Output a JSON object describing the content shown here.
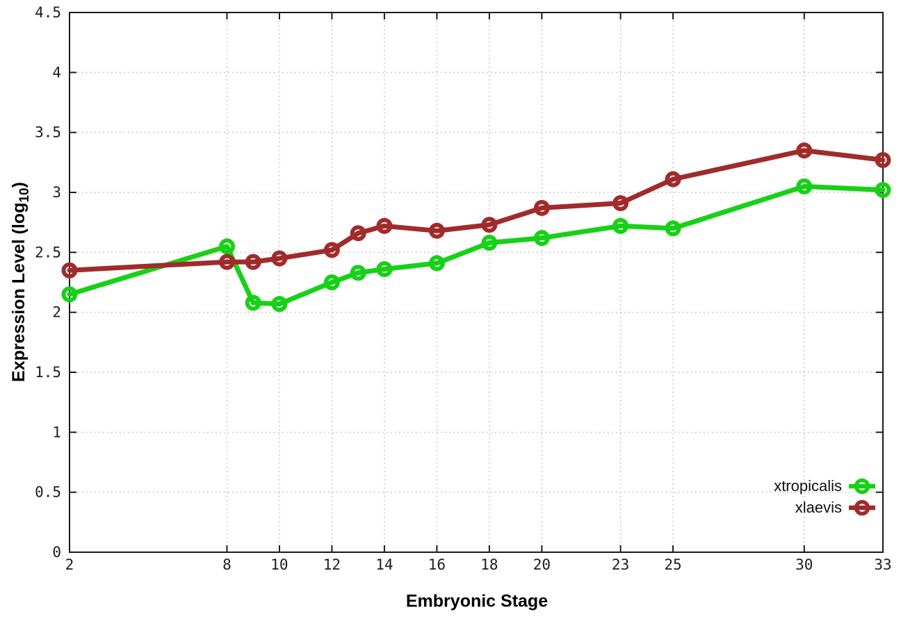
{
  "chart_data": {
    "type": "line",
    "title": "",
    "xlabel": "Embryonic Stage",
    "ylabel_main": "Expression Level (log",
    "ylabel_sub": "10",
    "ylabel_end": ")",
    "x": [
      2,
      8,
      9,
      10,
      12,
      13,
      14,
      16,
      18,
      20,
      23,
      25,
      30,
      33
    ],
    "x_tick_labels": [
      2,
      8,
      10,
      12,
      14,
      16,
      18,
      20,
      23,
      25,
      30,
      33
    ],
    "y_tick_labels": [
      "0",
      "0.5",
      "1",
      "1.5",
      "2",
      "2.5",
      "3",
      "3.5",
      "4",
      "4.5"
    ],
    "y_tick_values": [
      0,
      0.5,
      1,
      1.5,
      2,
      2.5,
      3,
      3.5,
      4,
      4.5
    ],
    "xlim": [
      2,
      33
    ],
    "ylim": [
      0,
      4.5
    ],
    "grid": true,
    "legend_position": "bottom-right",
    "series": [
      {
        "name": "xtropicalis",
        "color": "#17d117",
        "values": [
          2.15,
          2.55,
          2.08,
          2.07,
          2.25,
          2.33,
          2.36,
          2.41,
          2.58,
          2.62,
          2.72,
          2.7,
          3.05,
          3.02
        ]
      },
      {
        "name": "xlaevis",
        "color": "#a12b2b",
        "values": [
          2.35,
          2.42,
          2.42,
          2.45,
          2.52,
          2.66,
          2.72,
          2.68,
          2.73,
          2.87,
          2.91,
          3.11,
          3.35,
          3.27
        ]
      }
    ]
  },
  "style_colors": {
    "grid": "#b8b8b8",
    "border": "#1a1a1a",
    "tick_text": "#1d1d1d"
  }
}
